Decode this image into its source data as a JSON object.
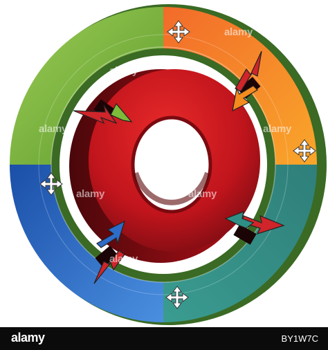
{
  "diagram": {
    "segments": [
      {
        "name": "green",
        "color": "#7dbb3a"
      },
      {
        "name": "orange",
        "color": "#f48b1e"
      },
      {
        "name": "teal",
        "color": "#2f8f86"
      },
      {
        "name": "blue",
        "color": "#2d6cc9"
      }
    ],
    "center_ring_color": "#c8151b",
    "arrow_color": "#c41e1e"
  },
  "watermarks": [
    "alamy",
    "alamy",
    "alamy",
    "alamy",
    "alamy",
    "alamy",
    "alamy",
    "alamy"
  ],
  "footer": {
    "logo": "alamy",
    "image_id": "BY1W7C"
  }
}
